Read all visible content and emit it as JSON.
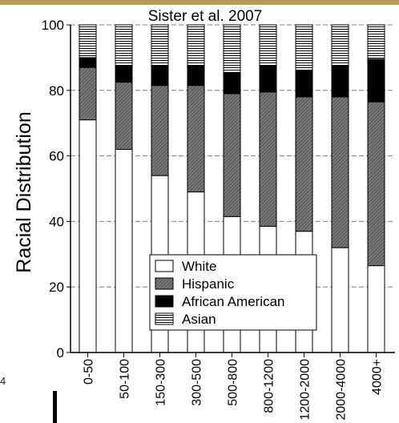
{
  "chart_data": {
    "type": "bar",
    "stacked": true,
    "title": "Sister et al. 2007",
    "ylabel": "Racial Distribution",
    "xlabel": "",
    "ylim": [
      0,
      100
    ],
    "yticks": [
      0,
      20,
      40,
      60,
      80,
      100
    ],
    "categories": [
      "0-50",
      "50-100",
      "150-300",
      "300-500",
      "500-800",
      "800-1200",
      "1200-2000",
      "2000-4000",
      "4000+"
    ],
    "series": [
      {
        "name": "White",
        "values": [
          71,
          62,
          54,
          49,
          41.5,
          38.5,
          37,
          32,
          26.5
        ]
      },
      {
        "name": "Hispanic",
        "values": [
          16,
          20.5,
          27.5,
          32.5,
          37.5,
          41,
          41,
          46,
          50
        ]
      },
      {
        "name": "African American",
        "values": [
          3,
          5,
          6,
          6,
          6.5,
          8,
          8,
          9.5,
          13
        ]
      },
      {
        "name": "Asian",
        "values": [
          10,
          12.5,
          12.5,
          12.5,
          14.5,
          12.5,
          14,
          12.5,
          10.5
        ]
      }
    ],
    "grid": true,
    "legend": "bottom-right"
  },
  "colors": {
    "background": "#ffffff",
    "top_strip": "#b89a5a",
    "ink": "#000000",
    "grid": "#808080"
  },
  "side_text": "4"
}
